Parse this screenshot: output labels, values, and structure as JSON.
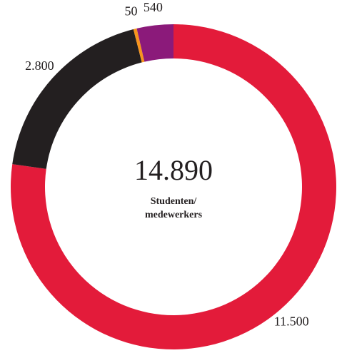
{
  "chart_data": {
    "type": "donut",
    "categories": [
      null,
      null,
      null,
      null
    ],
    "values": [
      11500,
      2800,
      50,
      540
    ],
    "value_labels": [
      "11.500",
      "2.800",
      "50",
      "540"
    ],
    "colors": [
      "#e31b3a",
      "#231f20",
      "#f7941d",
      "#8b1a7a"
    ],
    "total_label": "14.890",
    "center_text": [
      "Studenten/",
      "medewerkers"
    ]
  }
}
